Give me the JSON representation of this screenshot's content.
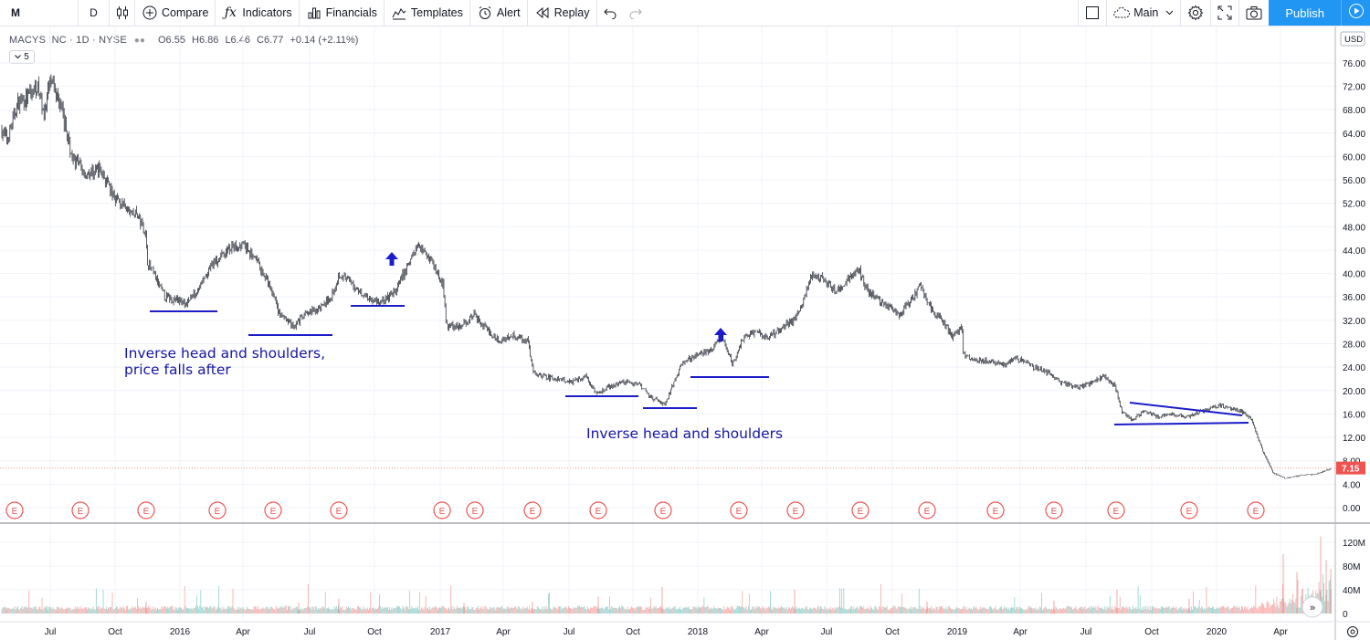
{
  "toolbar": {
    "symbol": "M",
    "resolution": "D",
    "compare": "Compare",
    "indicators": "Indicators",
    "financials": "Financials",
    "templates": "Templates",
    "alert": "Alert",
    "replay": "Replay",
    "layout": "Main",
    "publish": "Publish"
  },
  "legend": {
    "title": "MACYS INC · 1D · NYSE",
    "open": "O6.55",
    "high": "H6.86",
    "low": "L6.46",
    "close": "C6.77",
    "change": "+0.14 (+2.11%)",
    "collapse": "5"
  },
  "price_axis": {
    "currency": "USD",
    "last_price": "7.15",
    "last_price_color": "#ef5350",
    "ticks": [
      "76.00",
      "72.00",
      "68.00",
      "64.00",
      "60.00",
      "56.00",
      "52.00",
      "48.00",
      "44.00",
      "40.00",
      "36.00",
      "32.00",
      "28.00",
      "24.00",
      "20.00",
      "16.00",
      "12.00",
      "8.00",
      "4.00",
      "0.00"
    ]
  },
  "volume_axis": {
    "ticks": [
      "120M",
      "80M",
      "40M",
      "0"
    ]
  },
  "time_axis": {
    "labels": [
      "Jul",
      "Oct",
      "2016",
      "Apr",
      "Jul",
      "Oct",
      "2017",
      "Apr",
      "Jul",
      "Oct",
      "2018",
      "Apr",
      "Jul",
      "Oct",
      "2019",
      "Apr",
      "Jul",
      "Oct",
      "2020",
      "Apr"
    ]
  },
  "earnings_marker": "E",
  "annotations": {
    "left_line1": "Inverse head and shoulders,",
    "left_line2": "price falls after",
    "middle": "Inverse head and shoulders"
  },
  "colors": {
    "annotation": "#1515a6",
    "publish": "#2196f3",
    "earnings": "#ef5350",
    "volume_up": "#26a69a",
    "volume_down": "#ef5350",
    "candle": "#131722"
  },
  "chart_data": {
    "type": "candlestick",
    "title": "MACYS INC · 1D · NYSE",
    "ylim": [
      0,
      78
    ],
    "grid": true,
    "key_points": [
      {
        "date": "2015-06",
        "price": 65
      },
      {
        "date": "2015-06",
        "price": 72
      },
      {
        "date": "2015-07",
        "price": 73
      },
      {
        "date": "2015-08",
        "price": 60
      },
      {
        "date": "2015-10",
        "price": 52
      },
      {
        "date": "2015-11",
        "price": 42
      },
      {
        "date": "2016-01",
        "price": 35
      },
      {
        "date": "2016-03",
        "price": 45
      },
      {
        "date": "2016-05",
        "price": 33
      },
      {
        "date": "2016-08",
        "price": 41
      },
      {
        "date": "2016-10",
        "price": 36
      },
      {
        "date": "2016-12",
        "price": 45
      },
      {
        "date": "2017-01",
        "price": 30
      },
      {
        "date": "2017-03",
        "price": 28
      },
      {
        "date": "2017-05",
        "price": 23
      },
      {
        "date": "2017-08",
        "price": 20
      },
      {
        "date": "2017-11",
        "price": 17
      },
      {
        "date": "2018-01",
        "price": 26
      },
      {
        "date": "2018-05",
        "price": 33
      },
      {
        "date": "2018-06",
        "price": 41
      },
      {
        "date": "2018-08",
        "price": 40
      },
      {
        "date": "2018-11",
        "price": 38
      },
      {
        "date": "2019-01",
        "price": 26
      },
      {
        "date": "2019-04",
        "price": 24
      },
      {
        "date": "2019-07",
        "price": 21
      },
      {
        "date": "2019-09",
        "price": 16
      },
      {
        "date": "2020-01",
        "price": 18
      },
      {
        "date": "2020-03",
        "price": 6
      },
      {
        "date": "2020-05",
        "price": 6.8
      }
    ]
  }
}
